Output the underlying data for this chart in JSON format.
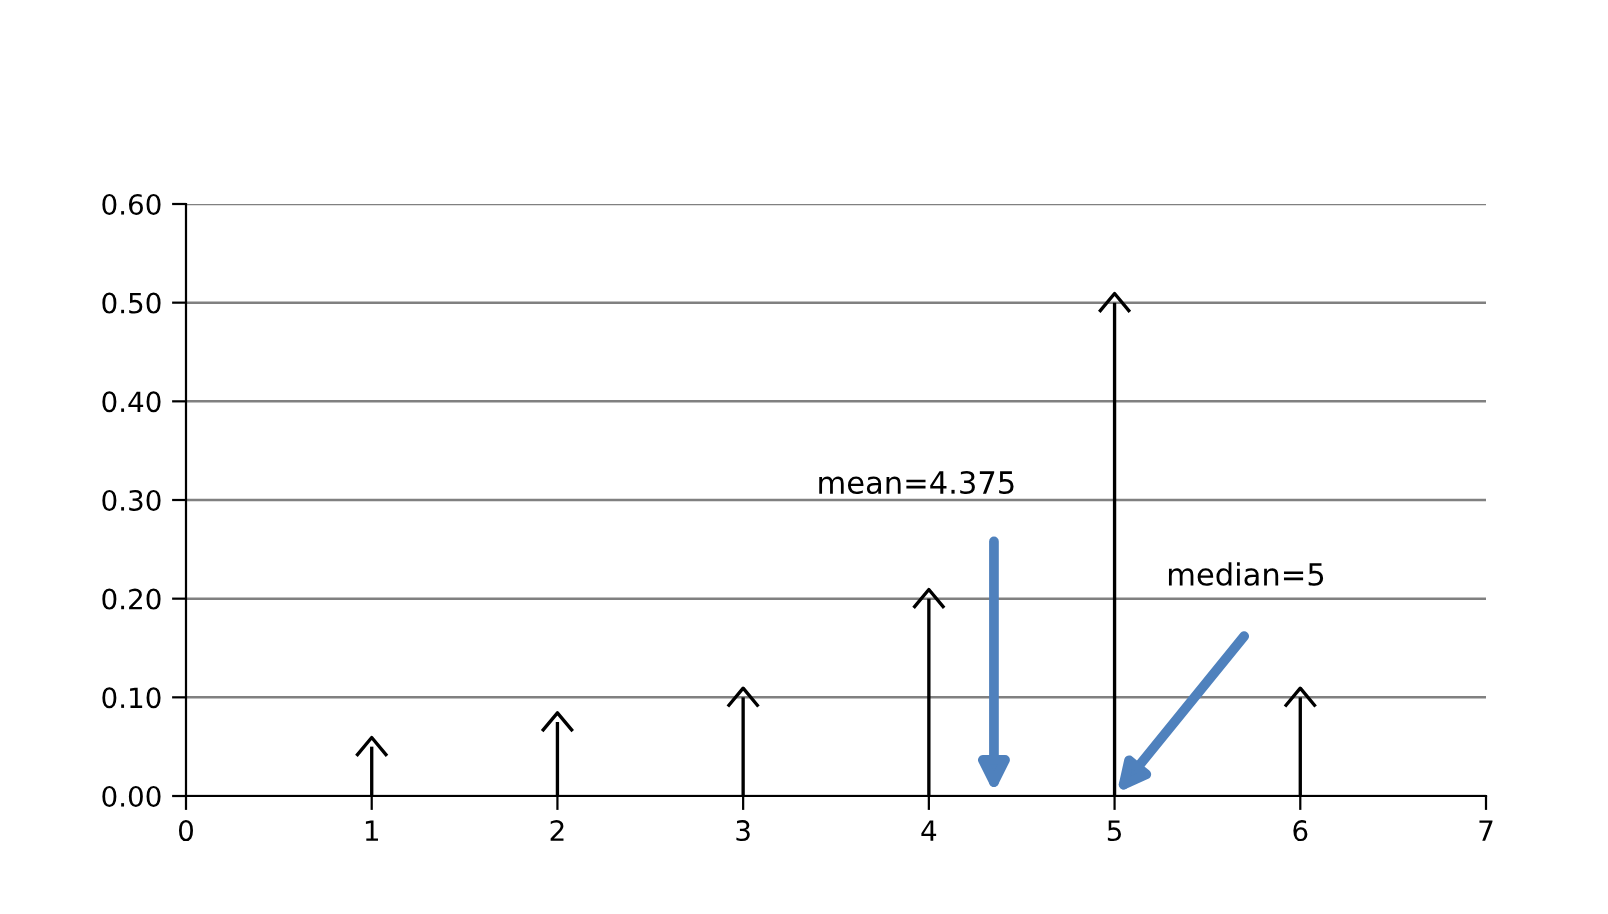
{
  "chart_data": {
    "type": "lollipop",
    "x": [
      1,
      2,
      3,
      4,
      5,
      6
    ],
    "values": [
      0.05,
      0.075,
      0.1,
      0.2,
      0.5,
      0.1
    ],
    "color": "#000000",
    "xlim": [
      0,
      7
    ],
    "xticks": [
      0,
      1,
      2,
      3,
      4,
      5,
      6,
      7
    ],
    "ylim": [
      0,
      0.6
    ],
    "yticks": [
      {
        "value": 0,
        "label": "0.00"
      },
      {
        "value": 0.1,
        "label": "0.10"
      },
      {
        "value": 0.2,
        "label": "0.20"
      },
      {
        "value": 0.3,
        "label": "0.30"
      },
      {
        "value": 0.4,
        "label": "0.40"
      },
      {
        "value": 0.5,
        "label": "0.50"
      },
      {
        "value": 0.6,
        "label": "0.60"
      }
    ],
    "grid": "y",
    "legend": false,
    "annotations": [
      "mean=4.375",
      "median=5"
    ]
  }
}
